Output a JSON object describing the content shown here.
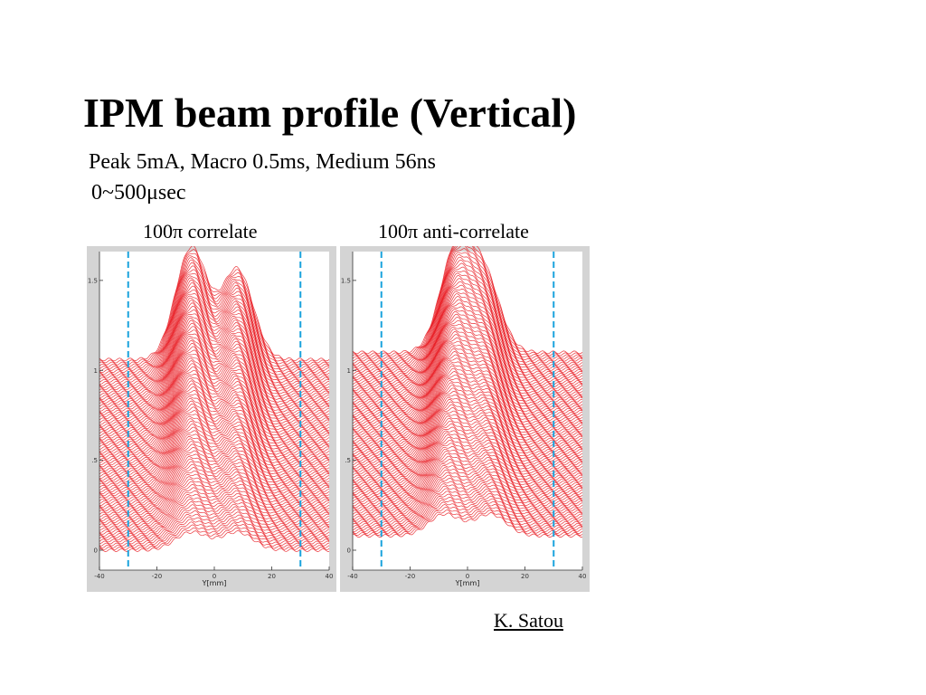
{
  "slide": {
    "title": "IPM beam profile (Vertical)",
    "subtitle_line1": "Peak 5mA, Macro 0.5ms, Medium 56ns",
    "subtitle_line2": "0~500μsec",
    "credit": "K. Satou"
  },
  "colors": {
    "trace": "#e8141b",
    "marker": "#1aa3dd",
    "plot_bg": "#ffffff",
    "frame": "#d4d4d4"
  },
  "chart_data": [
    {
      "type": "line",
      "title": "100π correlate",
      "xlabel": "Y[mm]",
      "ylabel": "",
      "xlim": [
        -40,
        40
      ],
      "ylim": [
        0,
        1.6
      ],
      "x_ticks": [
        "-40",
        "-20",
        "0",
        "20",
        "40"
      ],
      "y_ticks": [
        "0",
        ".5",
        "1",
        "1.5"
      ],
      "marker_lines_x": [
        -30,
        30
      ],
      "trace_count": 100,
      "first_profile": {
        "baseline": 0.0,
        "peaks": [
          {
            "x": -8,
            "height": 0.1
          },
          {
            "x": 8,
            "height": 0.1
          }
        ]
      },
      "last_profile": {
        "baseline": 1.06,
        "peaks": [
          {
            "x": -8,
            "height": 0.62
          },
          {
            "x": 8,
            "height": 0.5
          }
        ]
      },
      "grid": false
    },
    {
      "type": "line",
      "title": "100π anti-correlate",
      "xlabel": "Y[mm]",
      "ylabel": "",
      "xlim": [
        -40,
        40
      ],
      "ylim": [
        0,
        1.6
      ],
      "x_ticks": [
        "-40",
        "-20",
        "0",
        "20",
        "40"
      ],
      "y_ticks": [
        "0",
        ".5",
        "1",
        "1.5"
      ],
      "marker_lines_x": [
        -30,
        30
      ],
      "trace_count": 100,
      "first_profile": {
        "baseline": 0.08,
        "peaks": [
          {
            "x": -8,
            "height": 0.12
          },
          {
            "x": 8,
            "height": 0.12
          }
        ]
      },
      "last_profile": {
        "baseline": 1.1,
        "peaks": [
          {
            "x": -4,
            "height": 0.56
          },
          {
            "x": 6,
            "height": 0.4
          }
        ]
      },
      "grid": false
    }
  ]
}
